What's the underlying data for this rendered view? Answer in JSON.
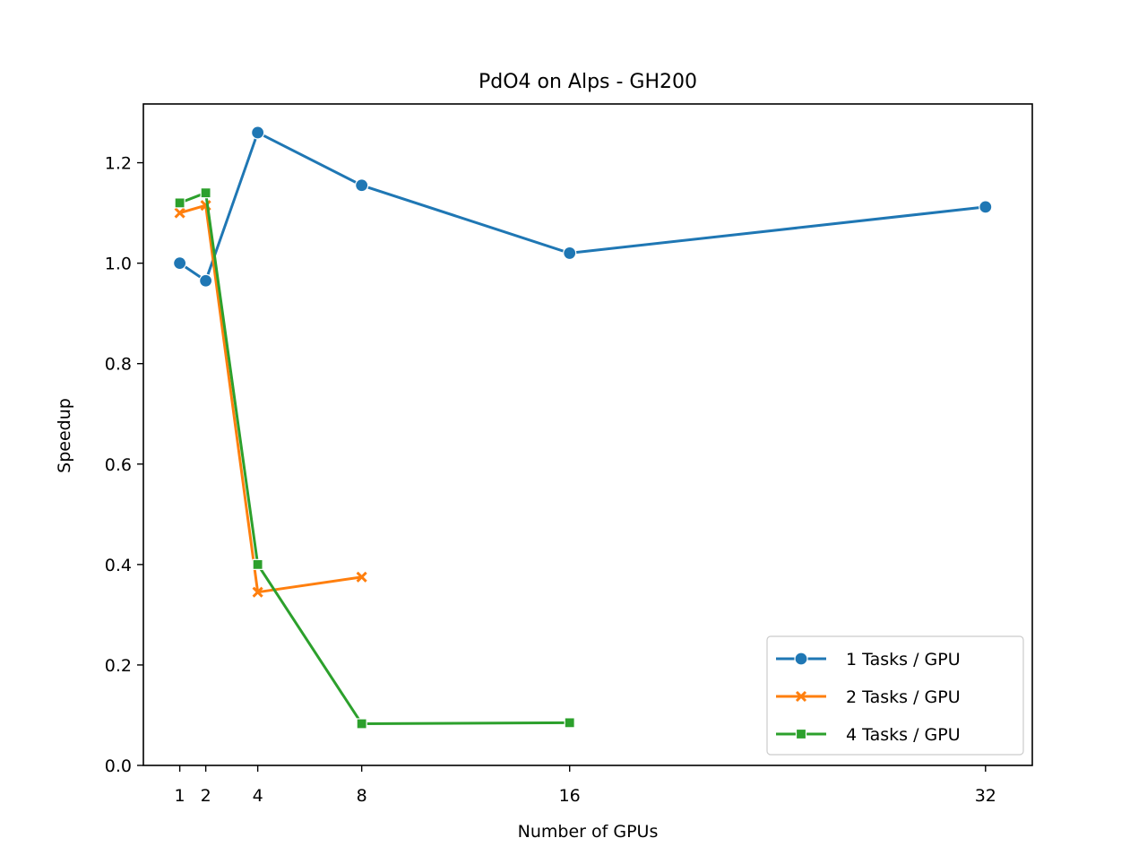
{
  "chart_data": {
    "type": "line",
    "title": "PdO4 on Alps - GH200",
    "xlabel": "Number of GPUs",
    "ylabel": "Speedup",
    "x_ticks": [
      1,
      2,
      4,
      8,
      16,
      32
    ],
    "y_ticks": [
      "0.0",
      "0.2",
      "0.4",
      "0.6",
      "0.8",
      "1.0",
      "1.2"
    ],
    "xlim": [
      -0.4,
      33.8
    ],
    "ylim": [
      0,
      1.317
    ],
    "grid": false,
    "legend_position": "lower-right",
    "series": [
      {
        "name": "1 Tasks / GPU",
        "color": "#1f77b4",
        "marker": "circle",
        "x": [
          1,
          2,
          4,
          8,
          16,
          32
        ],
        "y": [
          1.0,
          0.965,
          1.26,
          1.155,
          1.02,
          1.112
        ]
      },
      {
        "name": "2 Tasks / GPU",
        "color": "#ff7f0e",
        "marker": "x",
        "x": [
          1,
          2,
          4,
          8
        ],
        "y": [
          1.1,
          1.115,
          0.345,
          0.375
        ]
      },
      {
        "name": "4 Tasks / GPU",
        "color": "#2ca02c",
        "marker": "square",
        "x": [
          1,
          2,
          4,
          8,
          16
        ],
        "y": [
          1.12,
          1.14,
          0.4,
          0.083,
          0.085
        ]
      }
    ]
  }
}
